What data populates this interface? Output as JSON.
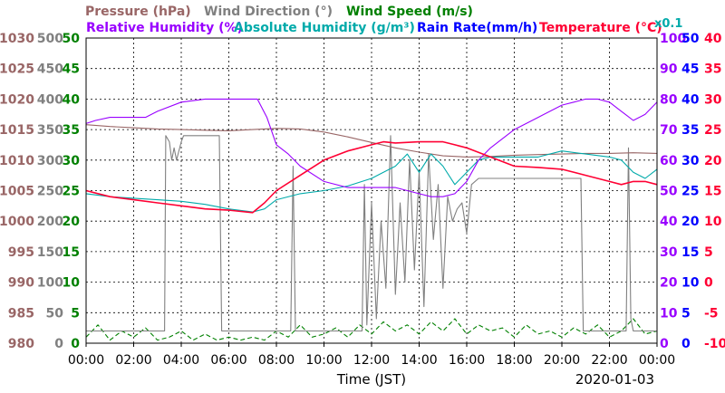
{
  "chart_data": {
    "type": "line",
    "date": "2020-01-03",
    "xlabel": "Time (JST)",
    "x_ticks": [
      "00:00",
      "02:00",
      "04:00",
      "06:00",
      "08:00",
      "10:00",
      "12:00",
      "14:00",
      "16:00",
      "18:00",
      "20:00",
      "22:00",
      "00:00"
    ],
    "x_range_hours": [
      0,
      24
    ],
    "grid": true,
    "legend_placement": "top",
    "legend": [
      {
        "id": "pressure",
        "text": "Pressure (hPa)",
        "color": "#996666"
      },
      {
        "id": "wind_dir",
        "text": "Wind Direction (°)",
        "color": "#808080"
      },
      {
        "id": "wind_speed",
        "text": "Wind Speed (m/s)",
        "color": "#008000"
      },
      {
        "id": "rh",
        "text": "Relative Humidity (%)",
        "color": "#9900ff"
      },
      {
        "id": "ah",
        "text": "Absolute Humidity (g/m³)",
        "color": "#00aaaa"
      },
      {
        "id": "rain",
        "text": "Rain Rate(mm/h)",
        "color": "#0000ff"
      },
      {
        "id": "temp",
        "text": "Temperature (°C)",
        "color": "#ff0033"
      },
      {
        "id": "scale",
        "text": "x0.1",
        "color": "#00aaaa"
      }
    ],
    "axes": [
      {
        "id": "pressure",
        "side": "left",
        "color": "#996666",
        "range": [
          980,
          1030
        ],
        "ticks": [
          "980",
          "985",
          "990",
          "995",
          "1000",
          "1005",
          "1010",
          "1015",
          "1020",
          "1025",
          "1030"
        ]
      },
      {
        "id": "wind_dir",
        "side": "left",
        "color": "#808080",
        "range": [
          0,
          500
        ],
        "ticks": [
          "0",
          "50",
          "100",
          "150",
          "200",
          "250",
          "300",
          "350",
          "400",
          "450",
          "500"
        ]
      },
      {
        "id": "wind_speed",
        "side": "left",
        "color": "#008000",
        "range": [
          0,
          50
        ],
        "ticks": [
          "0",
          "5",
          "10",
          "15",
          "20",
          "25",
          "30",
          "35",
          "40",
          "45",
          "50"
        ]
      },
      {
        "id": "rh",
        "side": "right",
        "color": "#9900ff",
        "range": [
          0,
          100
        ],
        "ticks": [
          "0",
          "10",
          "20",
          "30",
          "40",
          "50",
          "60",
          "70",
          "80",
          "90",
          "100"
        ]
      },
      {
        "id": "rain",
        "side": "right",
        "color": "#0000ff",
        "range": [
          0,
          50
        ],
        "ticks": [
          "0",
          "5",
          "10",
          "15",
          "20",
          "25",
          "30",
          "35",
          "40",
          "45",
          "50"
        ]
      },
      {
        "id": "temp",
        "side": "right",
        "color": "#ff0033",
        "range": [
          -10,
          40
        ],
        "ticks": [
          "-10",
          "-5",
          "0",
          "5",
          "10",
          "15",
          "20",
          "25",
          "30",
          "35",
          "40"
        ]
      }
    ],
    "series": [
      {
        "name": "Pressure (hPa)",
        "axis": "pressure",
        "color": "#996666",
        "style": "line",
        "x": [
          0,
          1,
          2,
          3,
          4,
          5,
          6,
          7,
          8,
          9,
          10,
          11,
          12,
          13,
          14,
          15,
          16,
          17,
          18,
          19,
          20,
          21,
          22,
          23,
          24
        ],
        "y": [
          1015.8,
          1015.5,
          1015.3,
          1015.1,
          1015,
          1014.9,
          1014.8,
          1015,
          1015.2,
          1015.1,
          1014.6,
          1013.8,
          1012.9,
          1012,
          1011.3,
          1010.7,
          1010.5,
          1010.6,
          1010.8,
          1010.9,
          1011,
          1011.1,
          1011.1,
          1011.2,
          1011.1
        ]
      },
      {
        "name": "Relative Humidity (%)",
        "axis": "rh",
        "color": "#9900ff",
        "style": "line",
        "x": [
          0,
          0.4,
          1,
          2,
          2.5,
          3,
          4,
          5,
          6,
          6.7,
          7.2,
          7.6,
          8,
          8.5,
          9,
          10,
          11,
          12,
          13,
          14,
          14.5,
          15,
          15.5,
          16,
          16.5,
          17,
          18,
          19,
          20,
          20.5,
          21,
          21.5,
          22,
          22.5,
          23,
          23.5,
          24
        ],
        "y": [
          72,
          73,
          74,
          74,
          74,
          76,
          79,
          80,
          80,
          80,
          80,
          74,
          65,
          62,
          58,
          53,
          51,
          51,
          51,
          49,
          48,
          48,
          49,
          53,
          60,
          64,
          70,
          74,
          78,
          79,
          80,
          80,
          79,
          76,
          73,
          75,
          79
        ]
      },
      {
        "name": "Absolute Humidity (g/m³)",
        "axis": "rh",
        "color": "#00aaaa",
        "style": "line",
        "x": [
          0,
          1,
          2,
          3,
          4,
          5,
          6,
          7,
          7.5,
          8,
          9,
          10,
          11,
          12,
          12.5,
          13,
          13.5,
          14,
          14.5,
          15,
          15.5,
          16,
          16.5,
          17,
          18,
          19,
          20,
          21,
          22,
          22.5,
          23,
          23.5,
          24
        ],
        "y": [
          49,
          48,
          47.5,
          47,
          46.5,
          45.5,
          44,
          43,
          44,
          47,
          49,
          50,
          51.5,
          54,
          56,
          58,
          62,
          56,
          62,
          58,
          52,
          56,
          60,
          61,
          61,
          61,
          63,
          62,
          61,
          60,
          56,
          54,
          57
        ]
      },
      {
        "name": "Temperature (°C)",
        "axis": "temp",
        "color": "#ff0033",
        "style": "line",
        "x": [
          0,
          1,
          2,
          3,
          4,
          5,
          6,
          7,
          7.5,
          8,
          9,
          10,
          11,
          12,
          12.5,
          13,
          14,
          15,
          15.5,
          16,
          17,
          18,
          19,
          20,
          21,
          22,
          22.5,
          23,
          23.5,
          24
        ],
        "y": [
          15,
          14,
          13.5,
          13,
          12.5,
          12,
          11.8,
          11.4,
          13,
          15,
          17.5,
          20,
          21.5,
          22.5,
          23,
          22.8,
          23,
          23,
          22.5,
          22,
          20.5,
          19,
          18.8,
          18.5,
          17.5,
          16.5,
          16,
          16.5,
          16.5,
          16
        ]
      },
      {
        "name": "Wind Direction (°)",
        "axis": "wind_dir",
        "color": "#808080",
        "style": "line",
        "x": [
          0,
          3.3,
          3.35,
          3.5,
          3.6,
          3.7,
          3.8,
          4,
          4.1,
          5.6,
          5.7,
          8.6,
          8.7,
          8.8,
          9,
          11.6,
          11.7,
          11.8,
          12,
          12.2,
          12.4,
          12.6,
          12.8,
          13,
          13.2,
          13.4,
          13.6,
          13.8,
          14,
          14.2,
          14.4,
          14.6,
          14.8,
          15,
          15.2,
          15.4,
          15.6,
          15.8,
          16,
          16.2,
          16.5,
          20.8,
          20.9,
          22.7,
          22.8,
          22.9,
          23,
          23.2,
          24
        ],
        "y": [
          20,
          20,
          340,
          330,
          300,
          320,
          300,
          330,
          340,
          340,
          20,
          20,
          290,
          20,
          20,
          20,
          260,
          30,
          230,
          40,
          200,
          90,
          340,
          80,
          230,
          100,
          300,
          120,
          280,
          60,
          310,
          170,
          260,
          90,
          240,
          200,
          220,
          230,
          180,
          260,
          270,
          270,
          20,
          20,
          320,
          40,
          20,
          20,
          20
        ]
      },
      {
        "name": "Wind Speed (m/s)",
        "axis": "wind_speed",
        "color": "#008000",
        "style": "dashed",
        "x": [
          0,
          0.5,
          1,
          1.5,
          2,
          2.5,
          3,
          3.5,
          4,
          4.5,
          5,
          5.5,
          6,
          6.5,
          7,
          7.5,
          8,
          8.5,
          9,
          9.5,
          10,
          10.5,
          11,
          11.5,
          12,
          12.5,
          13,
          13.5,
          14,
          14.5,
          15,
          15.5,
          16,
          16.5,
          17,
          17.5,
          18,
          18.5,
          19,
          19.5,
          20,
          20.5,
          21,
          21.5,
          22,
          22.5,
          23,
          23.5,
          24
        ],
        "y": [
          1,
          3,
          0.5,
          2,
          1,
          2.5,
          0.5,
          1,
          2,
          0.5,
          1.5,
          0.5,
          1,
          0.5,
          1,
          0.5,
          2,
          1,
          3,
          1,
          1.5,
          2.5,
          1,
          3,
          1.5,
          3.5,
          2,
          3,
          1.5,
          3.5,
          2,
          4,
          1.5,
          3,
          2,
          2.5,
          1,
          3,
          1.5,
          2,
          1,
          2.5,
          1.5,
          3,
          1,
          2,
          4,
          1.5,
          2
        ]
      },
      {
        "name": "Rain Rate(mm/h)",
        "axis": "rain",
        "color": "#0000ff",
        "style": "line",
        "x": [
          0,
          24
        ],
        "y": [
          0,
          0
        ]
      }
    ]
  }
}
